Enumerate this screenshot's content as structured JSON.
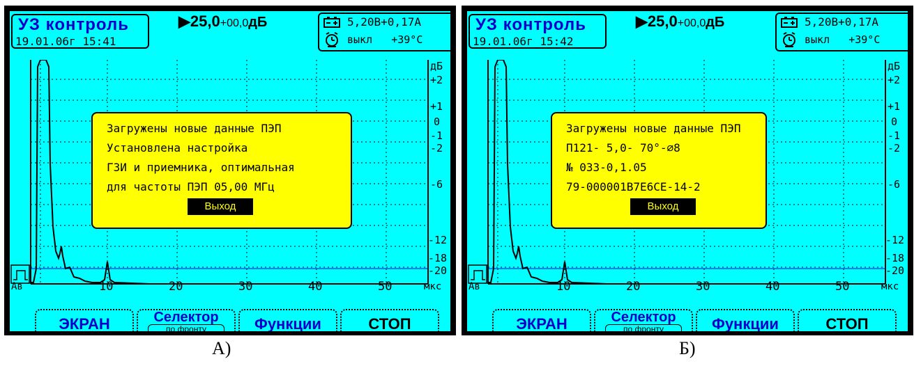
{
  "panels": [
    {
      "app_title": "УЗ контроль",
      "datetime": "19.01.06г 15:41",
      "gain_value": "▶25,0",
      "gain_offset": "+00,0",
      "gain_unit": "дБ",
      "voltage": "5,20В+0,17А",
      "timer_state": "выкл",
      "temperature": "+39°С",
      "db_axis_label": "дБ",
      "db_ticks": [
        "+2",
        "+1",
        "0",
        "-1",
        "-2",
        "-6",
        "-12",
        "-18",
        "-20"
      ],
      "x_start_label": "Ав",
      "x_ticks": [
        "10",
        "20",
        "30",
        "40",
        "50"
      ],
      "x_unit": "мкс",
      "dialog_lines": [
        "Загружены новые данные ПЭП",
        "Установлена настройка",
        "ГЗИ и приемника, оптимальная",
        "для частоты ПЭП  05,00 МГц"
      ],
      "exit_label": "Выход",
      "softkeys": {
        "screen": "ЭКРАН",
        "selector": "Селектор",
        "selector_sub": "по фронту",
        "functions": "Функции",
        "stop": "СТОП"
      },
      "caption": "А)"
    },
    {
      "app_title": "УЗ контроль",
      "datetime": "19.01.06г 15:42",
      "gain_value": "▶25,0",
      "gain_offset": "+00,0",
      "gain_unit": "дБ",
      "voltage": "5,20В+0,17А",
      "timer_state": "выкл",
      "temperature": "+39°С",
      "db_axis_label": "дБ",
      "db_ticks": [
        "+2",
        "+1",
        "0",
        "-1",
        "-2",
        "-6",
        "-12",
        "-18",
        "-20"
      ],
      "x_start_label": "Ав",
      "x_ticks": [
        "10",
        "20",
        "30",
        "40",
        "50"
      ],
      "x_unit": "мкс",
      "dialog_lines": [
        "Загружены новые данные ПЭП",
        "П121- 5,0- 70°-⌀8",
        "№ 033-0,1.05",
        "79-000001В7Е6СЕ-14-2"
      ],
      "exit_label": "Выход",
      "softkeys": {
        "screen": "ЭКРАН",
        "selector": "Селектор",
        "selector_sub": "по фронту",
        "functions": "Функции",
        "stop": "СТОП"
      },
      "caption": "Б)"
    }
  ],
  "colors": {
    "screen_bg": "#00ffff",
    "dialog_bg": "#ffff00",
    "title_text": "#0000cc"
  },
  "icons": [
    "battery-icon",
    "alarm-clock-icon",
    "gate-pulse-icon"
  ]
}
